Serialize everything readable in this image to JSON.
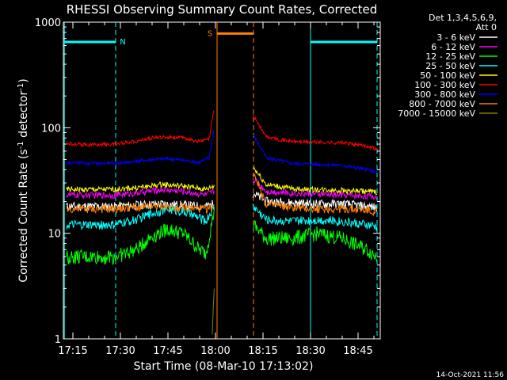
{
  "chart_data": {
    "type": "line",
    "title": "RHESSI Observing Summary Count Rates, Corrected",
    "xlabel": "Start Time (08-Mar-10 17:13:02)",
    "ylabel": "Corrected Count Rate (s⁻¹ detector⁻¹)",
    "ylabel_parts": {
      "main": "Corrected Count Rate (s",
      "exp1": "-1",
      "mid": " detector",
      "exp2": "-1",
      "end": ")"
    },
    "x_scale": "time",
    "x_unit": "minutes of day",
    "xlim": [
      1032,
      1132
    ],
    "x_ticks": [
      {
        "value": 1035,
        "label": "17:15"
      },
      {
        "value": 1050,
        "label": "17:30"
      },
      {
        "value": 1065,
        "label": "17:45"
      },
      {
        "value": 1080,
        "label": "18:00"
      },
      {
        "value": 1095,
        "label": "18:15"
      },
      {
        "value": 1110,
        "label": "18:30"
      },
      {
        "value": 1125,
        "label": "18:45"
      }
    ],
    "y_scale": "log",
    "ylim": [
      1,
      1000
    ],
    "y_ticks": [
      {
        "value": 1,
        "label": "1"
      },
      {
        "value": 10,
        "label": "10"
      },
      {
        "value": 100,
        "label": "100"
      },
      {
        "value": 1000,
        "label": "1000"
      }
    ],
    "legend_title": [
      "Det 1,3,4,5,6,9,",
      "Att 0"
    ],
    "legend_position": "right",
    "series": [
      {
        "name": "3 - 6 keV",
        "color": "#ffffff",
        "x": [
          1033,
          1040,
          1048,
          1055,
          1063,
          1070,
          1077,
          1079.5,
          1092,
          1096,
          1104,
          1112,
          1120,
          1128,
          1131
        ],
        "y": [
          18,
          18,
          18,
          18.5,
          19,
          18.5,
          18,
          19,
          24,
          20,
          19.5,
          19,
          19,
          18,
          17.5
        ]
      },
      {
        "name": "6 - 12 keV",
        "color": "#ff00ff",
        "x": [
          1033,
          1040,
          1048,
          1055,
          1063,
          1070,
          1077,
          1079.5,
          1092,
          1096,
          1104,
          1112,
          1120,
          1128,
          1131
        ],
        "y": [
          23,
          23,
          23,
          24,
          26,
          25,
          23,
          25,
          33,
          25,
          24,
          23.5,
          23,
          22.5,
          22
        ]
      },
      {
        "name": "12 - 25 keV",
        "color": "#00ff00",
        "x": [
          1033,
          1040,
          1048,
          1055,
          1060,
          1065,
          1070,
          1075,
          1077,
          1079.5,
          1092,
          1096,
          1104,
          1112,
          1120,
          1128,
          1131
        ],
        "y": [
          6,
          6,
          6,
          7,
          9.5,
          11,
          10,
          7,
          6.5,
          16,
          12,
          9,
          9,
          10,
          9,
          7,
          6
        ]
      },
      {
        "name": "25 - 50 keV",
        "color": "#00ffff",
        "x": [
          1033,
          1040,
          1048,
          1055,
          1060,
          1065,
          1070,
          1075,
          1077,
          1079.5,
          1092,
          1096,
          1104,
          1112,
          1120,
          1128,
          1131
        ],
        "y": [
          12,
          12,
          12,
          13.5,
          15.5,
          17,
          16,
          14,
          13,
          18,
          18,
          13.5,
          13,
          13.5,
          13,
          12,
          11.5
        ]
      },
      {
        "name": "50 - 100 keV",
        "color": "#ffff00",
        "x": [
          1033,
          1040,
          1048,
          1055,
          1063,
          1070,
          1077,
          1079.5,
          1092,
          1096,
          1104,
          1112,
          1120,
          1128,
          1131
        ],
        "y": [
          26,
          26,
          26,
          27,
          29,
          28,
          26,
          28,
          42,
          29,
          26.5,
          26,
          25.5,
          25,
          24.5
        ]
      },
      {
        "name": "100 - 300 keV",
        "color": "#ff0000",
        "x": [
          1033,
          1040,
          1048,
          1055,
          1060,
          1065,
          1070,
          1075,
          1078,
          1079.5,
          1092,
          1096,
          1104,
          1112,
          1120,
          1128,
          1131
        ],
        "y": [
          71,
          69,
          70,
          75,
          80,
          82,
          80,
          74,
          78,
          150,
          130,
          82,
          74,
          73,
          72,
          67,
          63
        ]
      },
      {
        "name": "300 - 800 keV",
        "color": "#0000ff",
        "x": [
          1033,
          1040,
          1048,
          1055,
          1060,
          1065,
          1070,
          1075,
          1078,
          1079.5,
          1092,
          1096,
          1104,
          1112,
          1120,
          1128,
          1131
        ],
        "y": [
          47,
          46,
          46,
          48,
          50,
          51,
          49,
          47,
          52,
          95,
          85,
          52,
          46,
          45,
          44,
          40,
          38
        ]
      },
      {
        "name": "800 - 7000 keV",
        "color": "#ff8000",
        "x": [
          1033,
          1040,
          1048,
          1055,
          1063,
          1070,
          1077,
          1079.5,
          1092,
          1096,
          1104,
          1112,
          1120,
          1128,
          1131
        ],
        "y": [
          17,
          17,
          17,
          17.5,
          18,
          17.5,
          17,
          17.5,
          38,
          19,
          17.5,
          17,
          17,
          16.5,
          16
        ]
      },
      {
        "name": "7000 - 15000 keV",
        "color": "#808000",
        "x": [
          1079.0,
          1079.3,
          1079.6
        ],
        "y": [
          1.1,
          2.0,
          3.0
        ]
      }
    ],
    "annotations": [
      {
        "label": "N",
        "color": "#00ffff",
        "bar": [
          1032,
          1048.5
        ],
        "y": 650
      },
      {
        "label": "S",
        "color": "#ff8000",
        "bar": [
          1080.5,
          1092
        ],
        "y": 780
      },
      {
        "label": "",
        "color": "#00ffff",
        "bar": [
          1110,
          1131
        ],
        "y": 650
      }
    ],
    "vertical_lines": [
      {
        "x": 1032.3,
        "color": "#00ffff",
        "style": "solid"
      },
      {
        "x": 1048.5,
        "color": "#00ffff",
        "style": "dashed"
      },
      {
        "x": 1080.5,
        "color": "#ff8000",
        "style": "solid"
      },
      {
        "x": 1092,
        "color": "#ff8000",
        "style": "dashed"
      },
      {
        "x": 1110,
        "color": "#00ffff",
        "style": "solid"
      },
      {
        "x": 1131,
        "color": "#00ffff",
        "style": "dashed"
      }
    ],
    "grid": false
  },
  "timestamp": "14-Oct-2021 11:56"
}
